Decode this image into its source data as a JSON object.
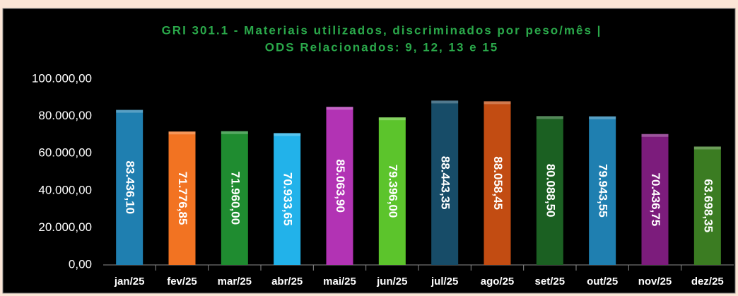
{
  "chart_data": {
    "type": "bar",
    "title": [
      "GRI 301.1 - Materiais utilizados, discriminados por peso/mês |",
      "ODS Relacionados: 9, 12, 13 e 15"
    ],
    "categories": [
      "jan/25",
      "fev/25",
      "mar/25",
      "abr/25",
      "mai/25",
      "jun/25",
      "jul/25",
      "ago/25",
      "set/25",
      "out/25",
      "nov/25",
      "dez/25"
    ],
    "values": [
      83436.1,
      71776.85,
      71960.0,
      70933.65,
      85063.9,
      79396.0,
      88443.35,
      88058.45,
      80088.5,
      79943.55,
      70436.75,
      63698.35
    ],
    "value_labels": [
      "83.436,10",
      "71.776,85",
      "71.960,00",
      "70.933,65",
      "85.063,90",
      "79.396,00",
      "88.443,35",
      "88.058,45",
      "80.088,50",
      "79.943,55",
      "70.436,75",
      "63.698,35"
    ],
    "colors": [
      "#1f7fb0",
      "#f27322",
      "#1f8c30",
      "#22b2ea",
      "#b233b4",
      "#5cc42c",
      "#174c68",
      "#c24c12",
      "#1b6022",
      "#1f7fb0",
      "#7c1c7c",
      "#3b7c22"
    ],
    "ylim": [
      0,
      100000
    ],
    "yticks": [
      {
        "value": 0,
        "label": "0,00"
      },
      {
        "value": 20000,
        "label": "20.000,00"
      },
      {
        "value": 40000,
        "label": "40.000,00"
      },
      {
        "value": 60000,
        "label": "60.000,00"
      },
      {
        "value": 80000,
        "label": "80.000,00"
      },
      {
        "value": 100000,
        "label": "100.000,00"
      }
    ],
    "grid": false
  }
}
